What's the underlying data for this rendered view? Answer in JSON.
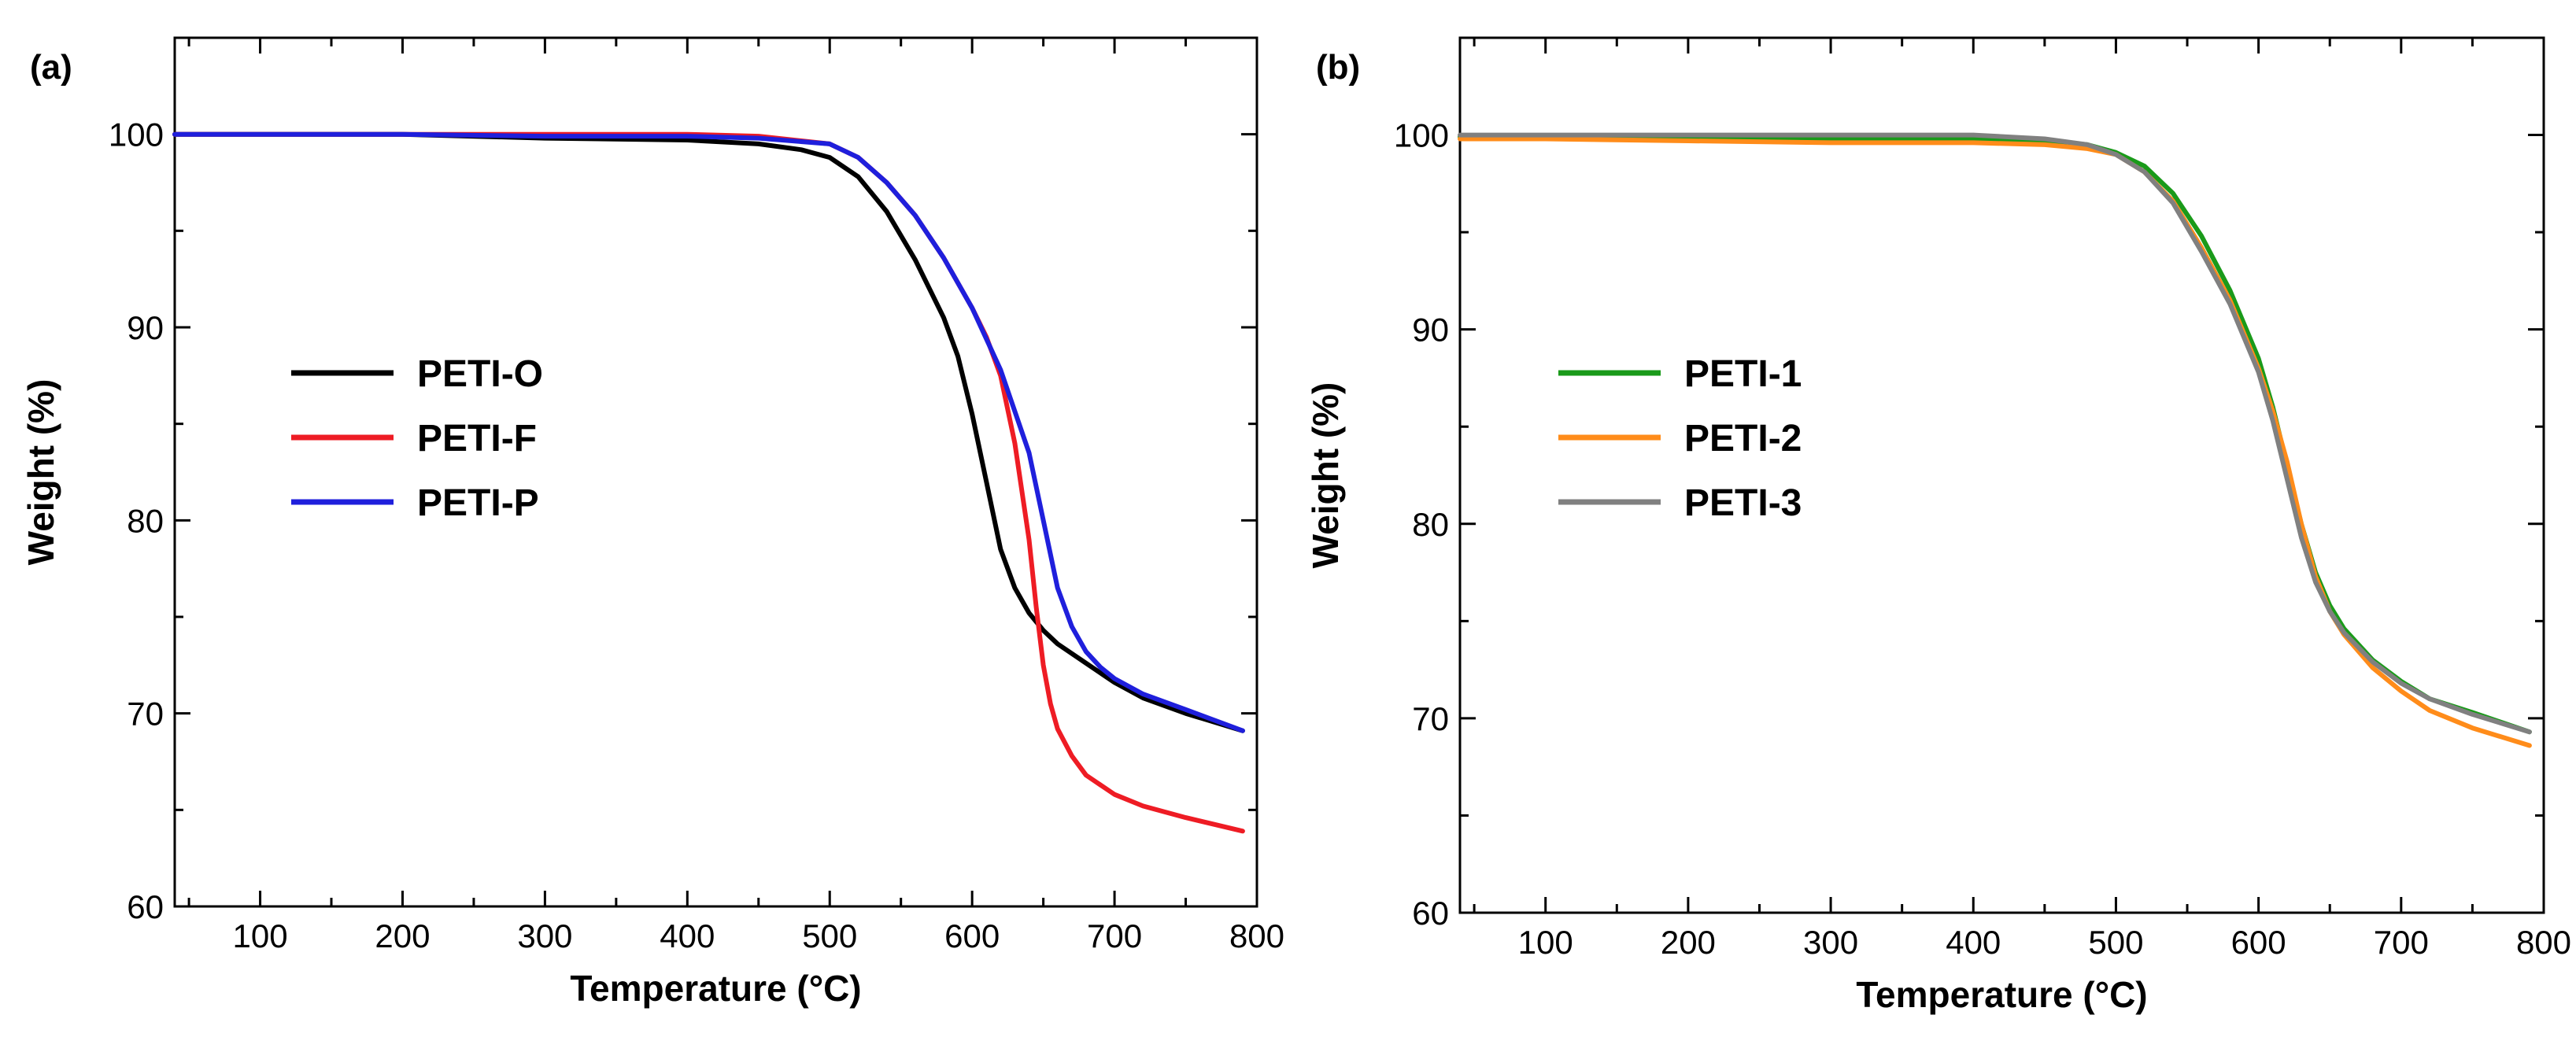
{
  "colors": {
    "PETI-O": "#000000",
    "PETI-F": "#ee1c24",
    "PETI-P": "#1f1fdc",
    "PETI-1": "#1a9a1a",
    "PETI-2": "#ff8c1a",
    "PETI-3": "#808080"
  },
  "chart_data": [
    {
      "type": "line",
      "panel_label": "(a)",
      "xlabel": "Temperature (°C)",
      "ylabel": "Weight (%)",
      "xlim": [
        40,
        800
      ],
      "ylim": [
        60,
        105
      ],
      "xticks": [
        100,
        200,
        300,
        400,
        500,
        600,
        700,
        800
      ],
      "yticks": [
        60,
        70,
        80,
        90,
        100
      ],
      "legend": [
        "PETI-O",
        "PETI-F",
        "PETI-P"
      ],
      "series": [
        {
          "name": "PETI-O",
          "x": [
            40,
            100,
            200,
            300,
            400,
            450,
            480,
            500,
            520,
            540,
            560,
            580,
            590,
            600,
            610,
            620,
            630,
            640,
            650,
            660,
            680,
            700,
            720,
            750,
            790
          ],
          "y": [
            100,
            100,
            100,
            99.8,
            99.7,
            99.5,
            99.2,
            98.8,
            97.8,
            96.0,
            93.5,
            90.5,
            88.5,
            85.5,
            82.0,
            78.5,
            76.5,
            75.2,
            74.3,
            73.6,
            72.6,
            71.6,
            70.8,
            70.0,
            69.1
          ]
        },
        {
          "name": "PETI-F",
          "x": [
            40,
            100,
            200,
            300,
            400,
            450,
            500,
            520,
            540,
            560,
            580,
            600,
            610,
            620,
            630,
            640,
            645,
            650,
            655,
            660,
            670,
            680,
            700,
            720,
            750,
            790
          ],
          "y": [
            100,
            100,
            100,
            100,
            100,
            99.9,
            99.5,
            98.8,
            97.5,
            95.8,
            93.6,
            91.0,
            89.5,
            87.5,
            84.0,
            79.0,
            75.5,
            72.5,
            70.5,
            69.2,
            67.8,
            66.8,
            65.8,
            65.2,
            64.6,
            63.9
          ]
        },
        {
          "name": "PETI-P",
          "x": [
            40,
            100,
            200,
            300,
            400,
            450,
            500,
            520,
            540,
            560,
            580,
            600,
            620,
            640,
            650,
            660,
            670,
            680,
            690,
            700,
            720,
            750,
            790
          ],
          "y": [
            100,
            100,
            100,
            99.9,
            99.9,
            99.8,
            99.5,
            98.8,
            97.5,
            95.8,
            93.6,
            91.0,
            87.8,
            83.5,
            80.0,
            76.5,
            74.5,
            73.2,
            72.4,
            71.8,
            71.0,
            70.2,
            69.1
          ]
        }
      ]
    },
    {
      "type": "line",
      "panel_label": "(b)",
      "xlabel": "Temperature (°C)",
      "ylabel": "Weight (%)",
      "xlim": [
        40,
        800
      ],
      "ylim": [
        60,
        105
      ],
      "xticks": [
        100,
        200,
        300,
        400,
        500,
        600,
        700,
        800
      ],
      "yticks": [
        60,
        70,
        80,
        90,
        100
      ],
      "legend": [
        "PETI-1",
        "PETI-2",
        "PETI-3"
      ],
      "series": [
        {
          "name": "PETI-1",
          "x": [
            40,
            100,
            200,
            300,
            400,
            450,
            480,
            500,
            520,
            540,
            560,
            580,
            600,
            610,
            620,
            630,
            640,
            650,
            660,
            680,
            700,
            720,
            750,
            790
          ],
          "y": [
            99.9,
            99.9,
            99.8,
            99.8,
            99.8,
            99.7,
            99.5,
            99.1,
            98.4,
            97.0,
            94.8,
            92.0,
            88.5,
            86.0,
            83.0,
            80.0,
            77.5,
            75.8,
            74.6,
            73.0,
            71.9,
            71.0,
            70.3,
            69.3
          ]
        },
        {
          "name": "PETI-2",
          "x": [
            40,
            100,
            200,
            300,
            400,
            450,
            480,
            500,
            520,
            540,
            560,
            580,
            600,
            610,
            620,
            630,
            640,
            650,
            660,
            680,
            700,
            720,
            750,
            790
          ],
          "y": [
            99.8,
            99.8,
            99.7,
            99.6,
            99.6,
            99.5,
            99.3,
            99.0,
            98.1,
            96.6,
            94.2,
            91.5,
            88.0,
            85.8,
            83.2,
            80.0,
            77.3,
            75.5,
            74.3,
            72.6,
            71.4,
            70.4,
            69.5,
            68.6
          ]
        },
        {
          "name": "PETI-3",
          "x": [
            40,
            100,
            200,
            300,
            400,
            450,
            480,
            500,
            520,
            540,
            560,
            580,
            600,
            610,
            620,
            630,
            640,
            650,
            660,
            680,
            700,
            720,
            750,
            790
          ],
          "y": [
            100,
            100,
            100,
            100,
            100,
            99.8,
            99.5,
            99.0,
            98.1,
            96.5,
            94.0,
            91.3,
            87.8,
            85.3,
            82.3,
            79.3,
            77.0,
            75.5,
            74.4,
            72.9,
            71.8,
            71.0,
            70.2,
            69.3
          ]
        }
      ]
    }
  ]
}
